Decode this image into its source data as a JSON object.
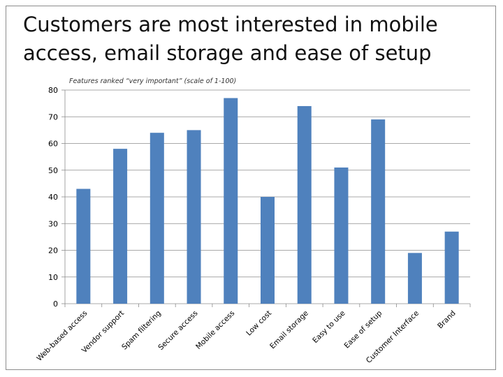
{
  "slide": {
    "title": "Customers are most interested in mobile access, email storage and ease of setup"
  },
  "chart_data": {
    "type": "bar",
    "subtitle": "Features ranked “very important” (scale of 1-100)",
    "categories": [
      "Web-based access",
      "Vendor support",
      "Spam filtering",
      "Secure access",
      "Mobile access",
      "Low cost",
      "Email storage",
      "Easy to use",
      "Ease of setup",
      "Customer Interface",
      "Brand"
    ],
    "values": [
      43,
      58,
      64,
      65,
      77,
      40,
      74,
      51,
      69,
      19,
      27
    ],
    "ylim": [
      0,
      80
    ],
    "yticks": [
      0,
      10,
      20,
      30,
      40,
      50,
      60,
      70,
      80
    ],
    "grid": true,
    "legend": "none",
    "bar_color": "#4f81bd"
  }
}
